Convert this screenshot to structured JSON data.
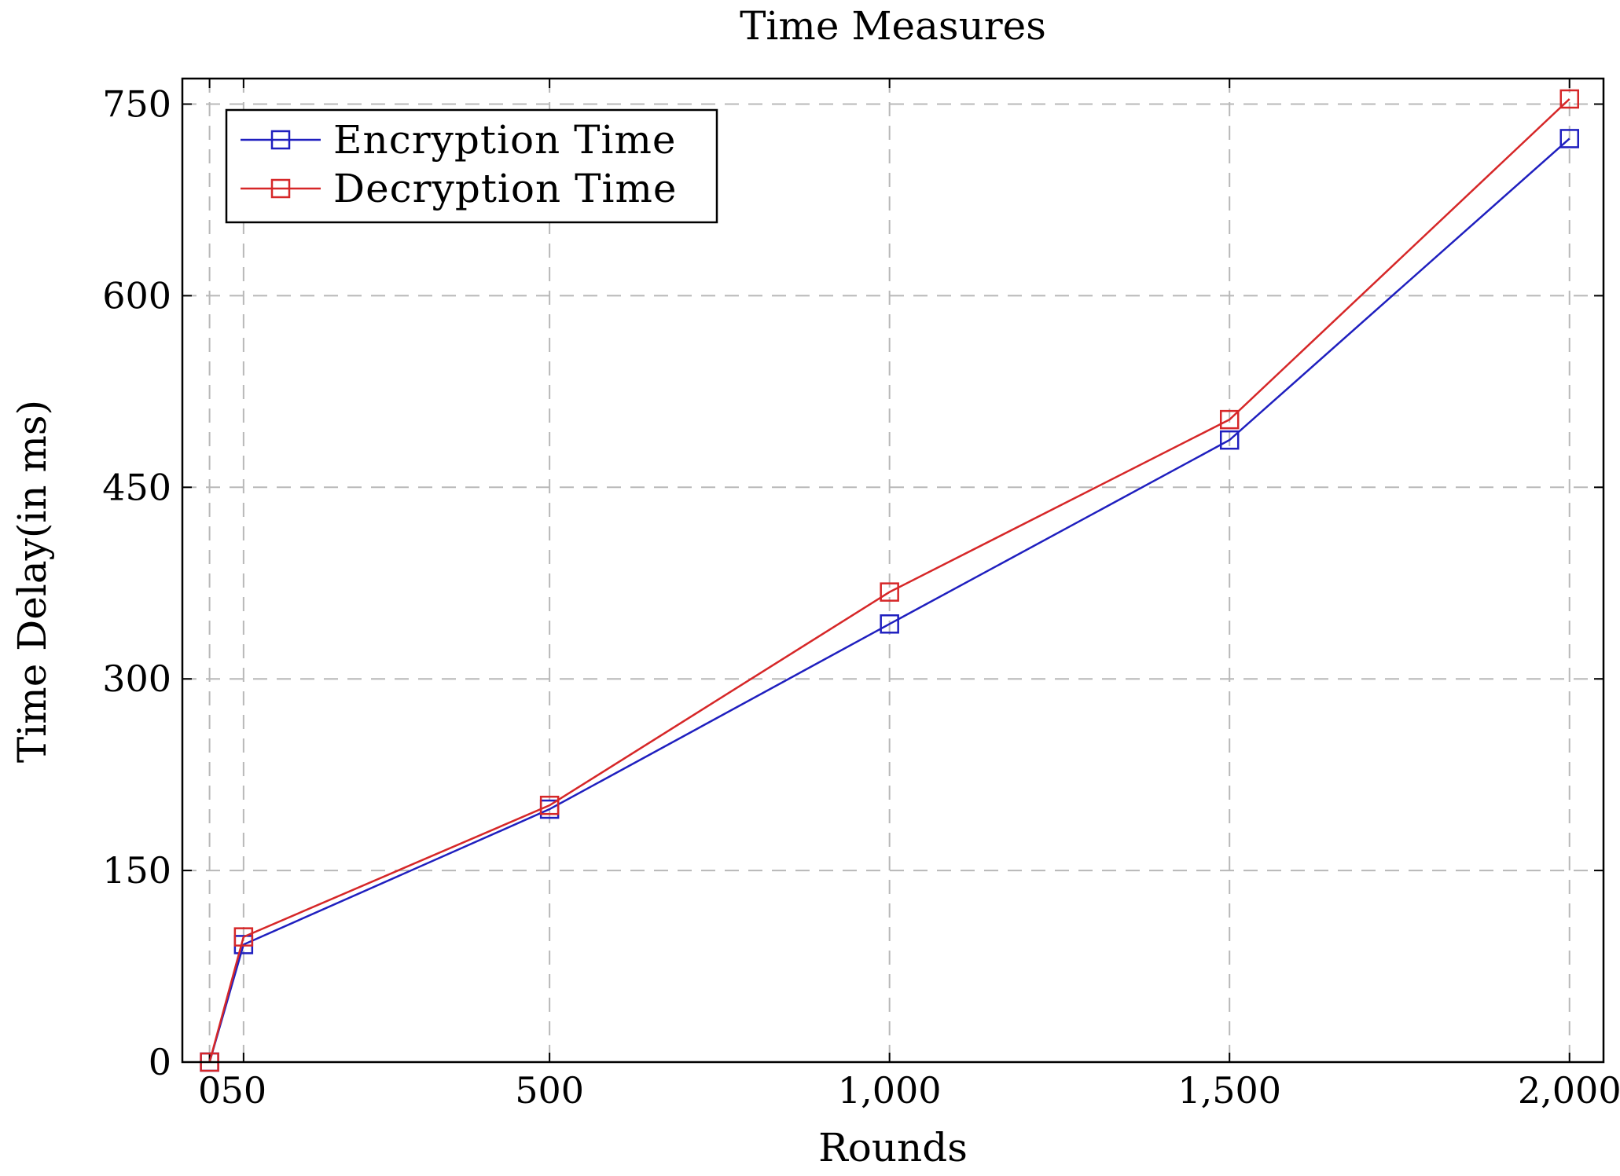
{
  "chart_data": {
    "type": "line",
    "title": "Time Measures",
    "xlabel": "Rounds",
    "ylabel": "Time Delay(in ms)",
    "xlim": [
      -40,
      2050
    ],
    "ylim": [
      0,
      770
    ],
    "xticks": [
      {
        "value": 0,
        "label": "0"
      },
      {
        "value": 50,
        "label": "50"
      },
      {
        "value": 500,
        "label": "500"
      },
      {
        "value": 1000,
        "label": "1,000"
      },
      {
        "value": 1500,
        "label": "1,500"
      },
      {
        "value": 2000,
        "label": "2,000"
      }
    ],
    "yticks": [
      {
        "value": 0,
        "label": "0"
      },
      {
        "value": 150,
        "label": "150"
      },
      {
        "value": 300,
        "label": "300"
      },
      {
        "value": 450,
        "label": "450"
      },
      {
        "value": 600,
        "label": "600"
      },
      {
        "value": 750,
        "label": "750"
      }
    ],
    "grid": "horizontal-dashed",
    "legend": "top-left",
    "series": [
      {
        "name": "Encryption Time",
        "color": "#1f1fbf",
        "marker": "square",
        "x": [
          0,
          50,
          500,
          1000,
          1500,
          2000
        ],
        "y": [
          0,
          92,
          198,
          343,
          487,
          723
        ]
      },
      {
        "name": "Decryption Time",
        "color": "#d62728",
        "marker": "square",
        "x": [
          0,
          50,
          500,
          1000,
          1500,
          2000
        ],
        "y": [
          0,
          98,
          201,
          368,
          503,
          754
        ]
      }
    ]
  }
}
